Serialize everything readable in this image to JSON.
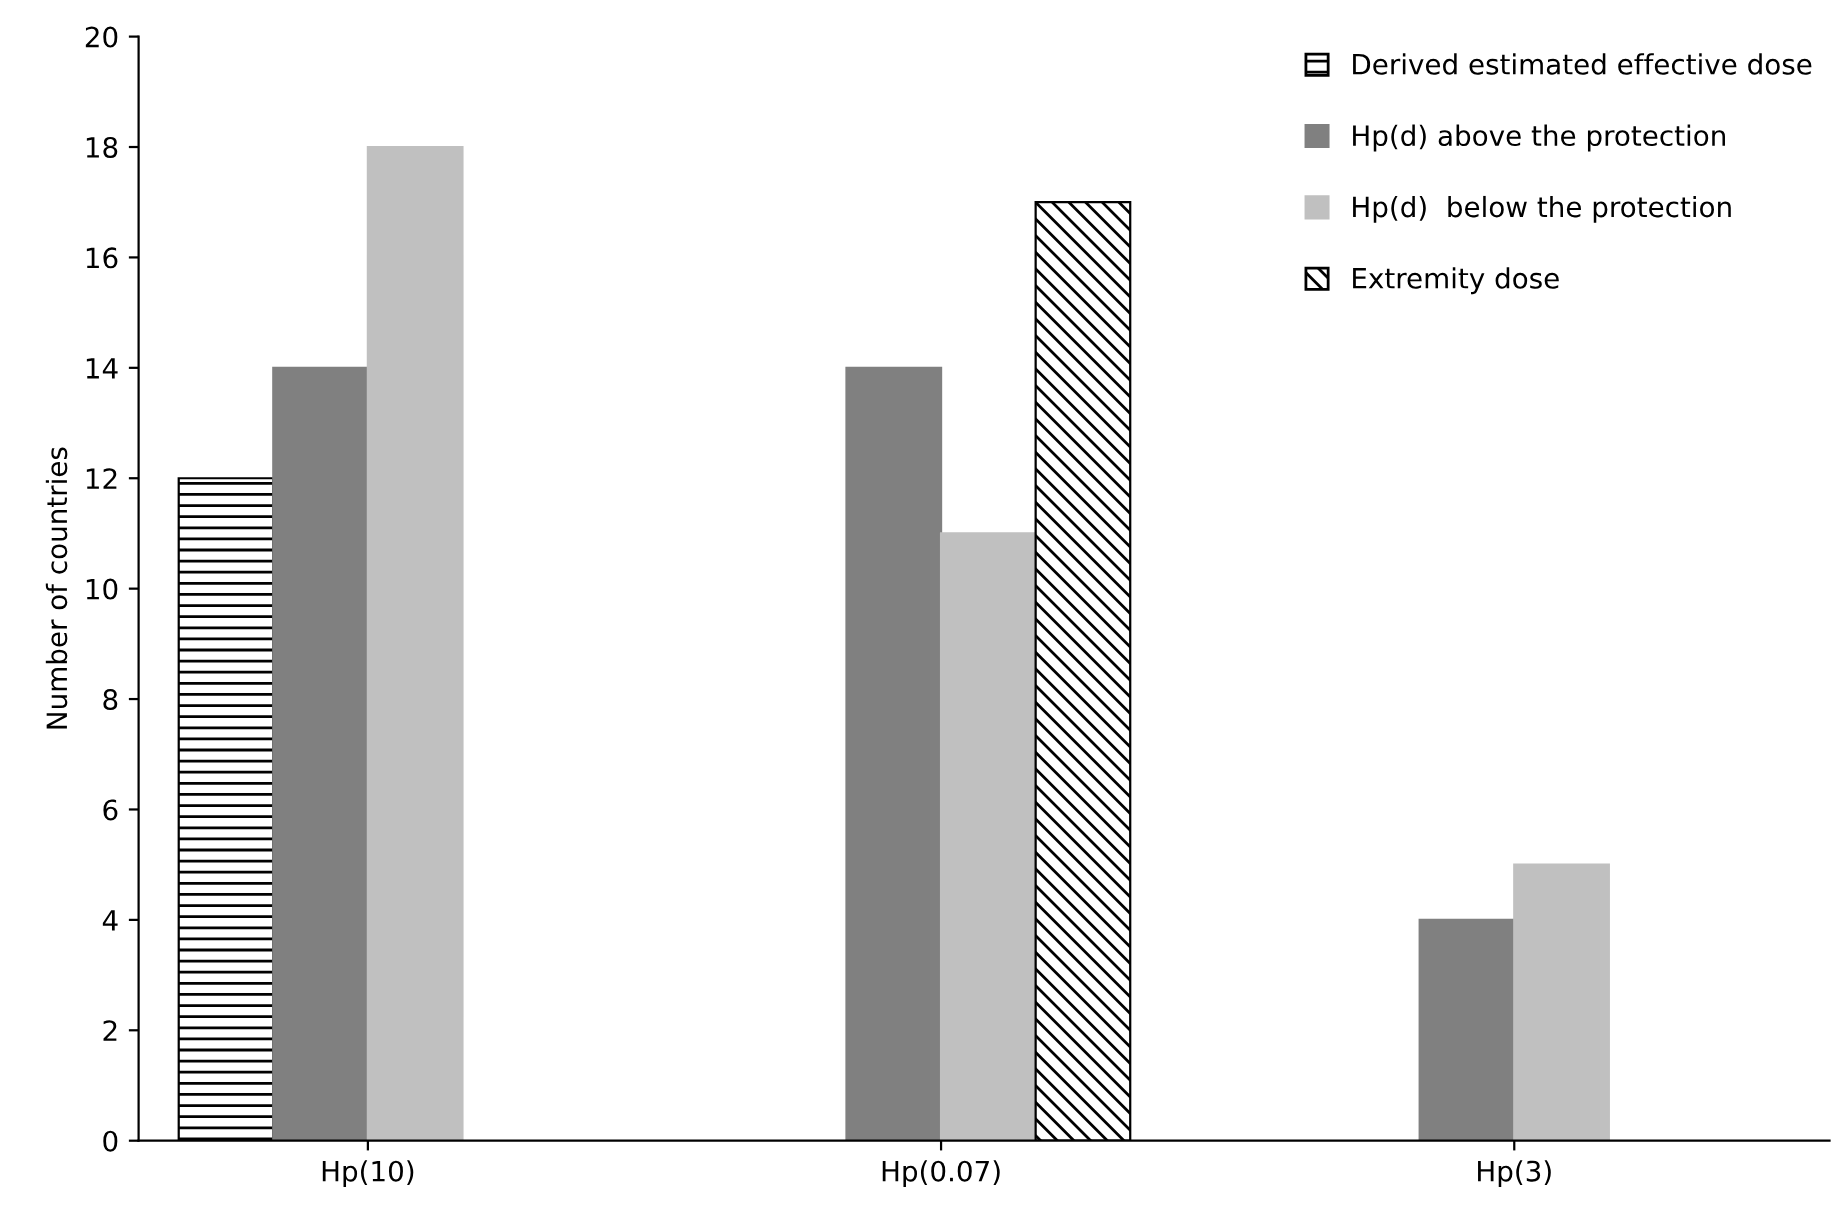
{
  "chart_data": {
    "type": "bar",
    "ylabel": "Number of countries",
    "categories": [
      "Hp(10)",
      "Hp(0.07)",
      "Hp(3)"
    ],
    "series": [
      {
        "name": "Derived estimated effective dose",
        "color": "#000000",
        "values": [
          12,
          null,
          null
        ]
      },
      {
        "name": "Hp(d) above the protection",
        "color": "#808080",
        "values": [
          14,
          14,
          4
        ]
      },
      {
        "name": "Hp(d)  below the protection",
        "color": "#c0c0c0",
        "values": [
          18,
          11,
          5
        ]
      },
      {
        "name": "Extremity dose",
        "color": "#000000",
        "values": [
          null,
          17,
          null
        ]
      }
    ],
    "ylim": [
      0,
      20
    ],
    "yticks": [
      0,
      2,
      4,
      6,
      8,
      10,
      12,
      14,
      16,
      18,
      20
    ],
    "grid": false,
    "legend": "top right"
  }
}
